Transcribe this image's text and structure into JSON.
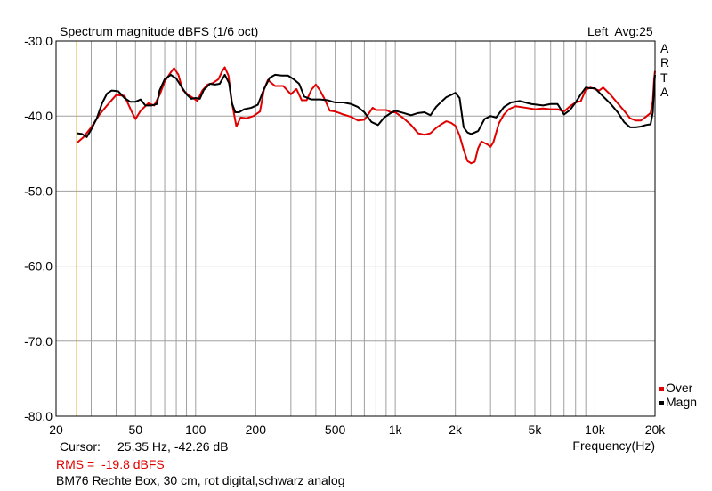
{
  "header": {
    "title": "Spectrum magnitude dBFS (1/6 oct)",
    "channel_avg": "Left  Avg:25",
    "brand_letters": [
      "A",
      "R",
      "T",
      "A"
    ]
  },
  "footer": {
    "cursor_label": "Cursor:",
    "cursor_value": "25.35 Hz, -42.26 dB",
    "rms": "RMS =  -19.8 dBFS",
    "description": "BM76 Rechte Box, 30 cm, rot digital,schwarz analog"
  },
  "colors": {
    "background": "#ffffff",
    "grid": "#a0a0a0",
    "cursor": "#d4a000",
    "over": "#e00000",
    "magn": "#000000",
    "rms_text": "#e00000"
  },
  "chart_data": {
    "type": "line",
    "title": "Spectrum magnitude dBFS (1/6 oct)",
    "xlabel": "Frequency(Hz)",
    "ylabel": "",
    "xscale": "log",
    "xlim": [
      20,
      20000
    ],
    "ylim": [
      -80,
      -30
    ],
    "x_tick_labels": [
      {
        "value": 20,
        "label": "20"
      },
      {
        "value": 50,
        "label": "50"
      },
      {
        "value": 100,
        "label": "100"
      },
      {
        "value": 200,
        "label": "200"
      },
      {
        "value": 500,
        "label": "500"
      },
      {
        "value": 1000,
        "label": "1k"
      },
      {
        "value": 2000,
        "label": "2k"
      },
      {
        "value": 5000,
        "label": "5k"
      },
      {
        "value": 10000,
        "label": "10k"
      },
      {
        "value": 20000,
        "label": "20k"
      }
    ],
    "y_tick_labels": [
      {
        "value": -30,
        "label": "-30.0"
      },
      {
        "value": -40,
        "label": "-40.0"
      },
      {
        "value": -50,
        "label": "-50.0"
      },
      {
        "value": -60,
        "label": "-60.0"
      },
      {
        "value": -70,
        "label": "-70.0"
      },
      {
        "value": -80,
        "label": "-80.0"
      }
    ],
    "grid": true,
    "legend_position": "bottom-right",
    "cursor_x": 25.35,
    "series": [
      {
        "name": "Over",
        "color": "#e00000",
        "points": [
          [
            25.4,
            -43.6
          ],
          [
            27.5,
            -42.8
          ],
          [
            30,
            -41.5
          ],
          [
            33,
            -39.8
          ],
          [
            36,
            -38.6
          ],
          [
            40,
            -37.2
          ],
          [
            44,
            -37.3
          ],
          [
            48,
            -39.5
          ],
          [
            50,
            -40.4
          ],
          [
            53,
            -39.3
          ],
          [
            58,
            -38.3
          ],
          [
            62,
            -38.6
          ],
          [
            66,
            -37.2
          ],
          [
            70,
            -35.4
          ],
          [
            75,
            -34.2
          ],
          [
            78,
            -33.6
          ],
          [
            82,
            -34.5
          ],
          [
            86,
            -36.5
          ],
          [
            92,
            -37.2
          ],
          [
            97,
            -37.6
          ],
          [
            102,
            -38
          ],
          [
            108,
            -36.6
          ],
          [
            115,
            -35.8
          ],
          [
            122,
            -35.6
          ],
          [
            130,
            -35.1
          ],
          [
            136,
            -34
          ],
          [
            140,
            -33.5
          ],
          [
            146,
            -34.6
          ],
          [
            152,
            -38.2
          ],
          [
            160,
            -41.4
          ],
          [
            168,
            -40.2
          ],
          [
            180,
            -40.3
          ],
          [
            195,
            -40
          ],
          [
            210,
            -39.4
          ],
          [
            220,
            -36.5
          ],
          [
            230,
            -35.2
          ],
          [
            250,
            -36
          ],
          [
            275,
            -36
          ],
          [
            300,
            -37.1
          ],
          [
            320,
            -36.4
          ],
          [
            340,
            -37.9
          ],
          [
            360,
            -37.9
          ],
          [
            380,
            -36.5
          ],
          [
            400,
            -35.8
          ],
          [
            420,
            -36.6
          ],
          [
            440,
            -37.6
          ],
          [
            470,
            -39.3
          ],
          [
            500,
            -39.4
          ],
          [
            550,
            -39.8
          ],
          [
            600,
            -40.1
          ],
          [
            650,
            -40.6
          ],
          [
            700,
            -40.5
          ],
          [
            740,
            -39.6
          ],
          [
            770,
            -38.9
          ],
          [
            800,
            -39.2
          ],
          [
            850,
            -39.2
          ],
          [
            900,
            -39.2
          ],
          [
            950,
            -39.5
          ],
          [
            1000,
            -39.5
          ],
          [
            1100,
            -40.3
          ],
          [
            1200,
            -41.2
          ],
          [
            1300,
            -42.3
          ],
          [
            1400,
            -42.5
          ],
          [
            1500,
            -42.3
          ],
          [
            1600,
            -41.6
          ],
          [
            1700,
            -41.1
          ],
          [
            1800,
            -40.7
          ],
          [
            1900,
            -40.9
          ],
          [
            2000,
            -41.3
          ],
          [
            2100,
            -42.6
          ],
          [
            2200,
            -44.5
          ],
          [
            2300,
            -46
          ],
          [
            2400,
            -46.3
          ],
          [
            2500,
            -46.1
          ],
          [
            2600,
            -44.3
          ],
          [
            2700,
            -43.4
          ],
          [
            2800,
            -43.6
          ],
          [
            2900,
            -43.8
          ],
          [
            3000,
            -44.1
          ],
          [
            3100,
            -43.5
          ],
          [
            3300,
            -41
          ],
          [
            3500,
            -39.8
          ],
          [
            3700,
            -39.1
          ],
          [
            4000,
            -38.7
          ],
          [
            4500,
            -38.9
          ],
          [
            5000,
            -39.1
          ],
          [
            5500,
            -39
          ],
          [
            6000,
            -39.1
          ],
          [
            6500,
            -39.1
          ],
          [
            7000,
            -39.4
          ],
          [
            7500,
            -38.7
          ],
          [
            8000,
            -38.2
          ],
          [
            8500,
            -38
          ],
          [
            9000,
            -36.5
          ],
          [
            9500,
            -36.2
          ],
          [
            10000,
            -36.4
          ],
          [
            10500,
            -36.6
          ],
          [
            11000,
            -36.2
          ],
          [
            12000,
            -37.2
          ],
          [
            13000,
            -38.3
          ],
          [
            14000,
            -39.3
          ],
          [
            15000,
            -40.3
          ],
          [
            16000,
            -40.6
          ],
          [
            17000,
            -40.6
          ],
          [
            18000,
            -40.1
          ],
          [
            19000,
            -39.6
          ],
          [
            19500,
            -38
          ],
          [
            19800,
            -35
          ],
          [
            20000,
            -34
          ]
        ]
      },
      {
        "name": "Magn",
        "color": "#000000",
        "points": [
          [
            25.4,
            -42.3
          ],
          [
            27,
            -42.4
          ],
          [
            28.5,
            -42.8
          ],
          [
            30,
            -41.8
          ],
          [
            32,
            -40.3
          ],
          [
            34,
            -38.3
          ],
          [
            36,
            -37
          ],
          [
            38,
            -36.6
          ],
          [
            41,
            -36.7
          ],
          [
            44,
            -37.6
          ],
          [
            47,
            -38.1
          ],
          [
            50,
            -38.1
          ],
          [
            53,
            -37.8
          ],
          [
            56,
            -38.6
          ],
          [
            60,
            -38.6
          ],
          [
            64,
            -38.4
          ],
          [
            66,
            -36.6
          ],
          [
            70,
            -35.1
          ],
          [
            75,
            -34.5
          ],
          [
            80,
            -35
          ],
          [
            85,
            -36.1
          ],
          [
            90,
            -37.1
          ],
          [
            95,
            -37.7
          ],
          [
            100,
            -37.6
          ],
          [
            105,
            -37.7
          ],
          [
            110,
            -36.5
          ],
          [
            118,
            -35.7
          ],
          [
            125,
            -35.8
          ],
          [
            132,
            -35.7
          ],
          [
            140,
            -34.5
          ],
          [
            147,
            -35.6
          ],
          [
            152,
            -38.3
          ],
          [
            158,
            -39.5
          ],
          [
            165,
            -39.5
          ],
          [
            175,
            -39.1
          ],
          [
            190,
            -38.9
          ],
          [
            205,
            -38.5
          ],
          [
            220,
            -36.4
          ],
          [
            235,
            -34.9
          ],
          [
            250,
            -34.5
          ],
          [
            270,
            -34.6
          ],
          [
            290,
            -34.6
          ],
          [
            310,
            -35.1
          ],
          [
            330,
            -35.7
          ],
          [
            350,
            -37.4
          ],
          [
            380,
            -37.8
          ],
          [
            420,
            -37.8
          ],
          [
            460,
            -37.9
          ],
          [
            500,
            -38.2
          ],
          [
            550,
            -38.2
          ],
          [
            600,
            -38.4
          ],
          [
            650,
            -38.8
          ],
          [
            700,
            -39.5
          ],
          [
            760,
            -40.8
          ],
          [
            820,
            -41.2
          ],
          [
            880,
            -40.2
          ],
          [
            950,
            -39.6
          ],
          [
            1000,
            -39.3
          ],
          [
            1100,
            -39.6
          ],
          [
            1200,
            -39.9
          ],
          [
            1300,
            -39.6
          ],
          [
            1400,
            -39.5
          ],
          [
            1500,
            -39.9
          ],
          [
            1600,
            -38.8
          ],
          [
            1700,
            -38.1
          ],
          [
            1800,
            -37.5
          ],
          [
            1900,
            -37.2
          ],
          [
            2000,
            -36.9
          ],
          [
            2100,
            -37.6
          ],
          [
            2200,
            -41.5
          ],
          [
            2300,
            -42.2
          ],
          [
            2400,
            -42.4
          ],
          [
            2600,
            -42
          ],
          [
            2800,
            -40.4
          ],
          [
            3000,
            -40
          ],
          [
            3200,
            -40.2
          ],
          [
            3500,
            -38.8
          ],
          [
            3800,
            -38.2
          ],
          [
            4200,
            -38
          ],
          [
            4800,
            -38.4
          ],
          [
            5500,
            -38.6
          ],
          [
            6000,
            -38.4
          ],
          [
            6500,
            -38.4
          ],
          [
            7000,
            -39.8
          ],
          [
            7500,
            -39.2
          ],
          [
            8000,
            -38.2
          ],
          [
            8500,
            -37.1
          ],
          [
            9000,
            -36.2
          ],
          [
            9500,
            -36.3
          ],
          [
            10000,
            -36.3
          ],
          [
            11000,
            -37.4
          ],
          [
            12000,
            -38.4
          ],
          [
            13000,
            -39.5
          ],
          [
            14000,
            -40.8
          ],
          [
            15000,
            -41.5
          ],
          [
            16000,
            -41.5
          ],
          [
            17000,
            -41.4
          ],
          [
            18000,
            -41.2
          ],
          [
            19000,
            -41.1
          ],
          [
            19500,
            -39.5
          ],
          [
            19800,
            -36
          ],
          [
            20000,
            -34.5
          ]
        ]
      }
    ]
  }
}
